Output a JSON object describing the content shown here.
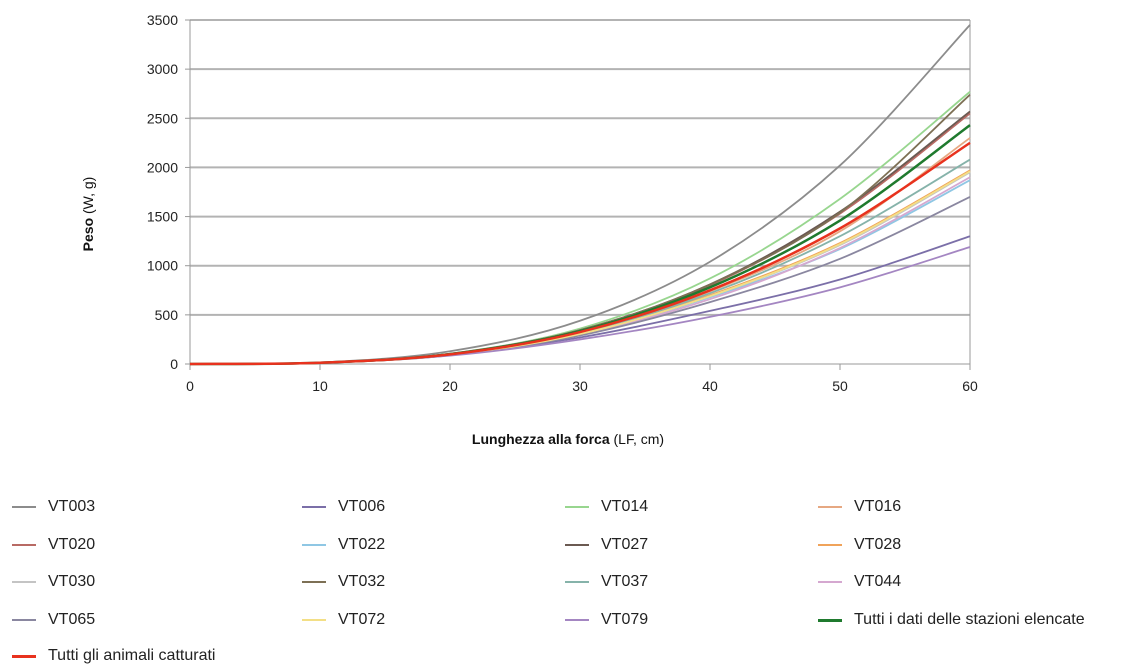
{
  "chart_data": {
    "type": "line",
    "title": "",
    "xlabel_bold": "Lunghezza alla forca",
    "xlabel_rest": " (LF, cm)",
    "ylabel_bold": "Peso",
    "ylabel_rest": " (W, g)",
    "xlim": [
      0,
      60
    ],
    "ylim": [
      0,
      3500
    ],
    "xticks": [
      0,
      10,
      20,
      30,
      40,
      50,
      60
    ],
    "yticks": [
      0,
      500,
      1000,
      1500,
      2000,
      2500,
      3000,
      3500
    ],
    "grid": "horizontal",
    "legend_position": "bottom",
    "x": [
      0,
      10,
      20,
      30,
      40,
      50,
      60
    ],
    "series": [
      {
        "name": "VT003",
        "color": "#8c8c8c",
        "values": [
          0,
          16,
          130,
          440,
          1040,
          2020,
          3450
        ]
      },
      {
        "name": "VT006",
        "color": "#7b6fa8",
        "values": [
          0,
          14,
          95,
          270,
          540,
          860,
          1300
        ]
      },
      {
        "name": "VT014",
        "color": "#98d68f",
        "values": [
          0,
          13,
          105,
          360,
          870,
          1680,
          2770
        ]
      },
      {
        "name": "VT016",
        "color": "#e6a882",
        "values": [
          0,
          13,
          98,
          320,
          740,
          1350,
          2300
        ]
      },
      {
        "name": "VT020",
        "color": "#b86a64",
        "values": [
          0,
          13,
          100,
          340,
          800,
          1530,
          2550
        ]
      },
      {
        "name": "VT022",
        "color": "#8fc7e4",
        "values": [
          0,
          12,
          90,
          300,
          680,
          1170,
          1870
        ]
      },
      {
        "name": "VT027",
        "color": "#6b5a52",
        "values": [
          0,
          13,
          104,
          345,
          810,
          1550,
          2570
        ]
      },
      {
        "name": "VT028",
        "color": "#f0a35a",
        "values": [
          0,
          13,
          95,
          310,
          700,
          1230,
          1970
        ]
      },
      {
        "name": "VT030",
        "color": "#c4c4c4",
        "values": [
          0,
          12,
          92,
          305,
          690,
          1210,
          1950
        ]
      },
      {
        "name": "VT032",
        "color": "#7d7055",
        "values": [
          0,
          13,
          102,
          345,
          810,
          1540,
          2740
        ]
      },
      {
        "name": "VT037",
        "color": "#86b3aa",
        "values": [
          0,
          13,
          98,
          320,
          720,
          1300,
          2080
        ]
      },
      {
        "name": "VT044",
        "color": "#d5a8d0",
        "values": [
          0,
          12,
          90,
          300,
          660,
          1180,
          1900
        ]
      },
      {
        "name": "VT065",
        "color": "#8a87a0",
        "values": [
          0,
          12,
          88,
          290,
          630,
          1070,
          1700
        ]
      },
      {
        "name": "VT072",
        "color": "#f3df86",
        "values": [
          0,
          12,
          92,
          305,
          690,
          1220,
          1960
        ]
      },
      {
        "name": "VT079",
        "color": "#a486c2",
        "values": [
          0,
          12,
          85,
          250,
          480,
          780,
          1190
        ]
      },
      {
        "name": "Tutti i dati delle stazioni elencate",
        "color": "#1f7a2e",
        "values": [
          0,
          13,
          100,
          335,
          780,
          1460,
          2430
        ]
      },
      {
        "name": "Tutti gli animali catturati",
        "color": "#e8321e",
        "values": [
          0,
          13,
          98,
          325,
          750,
          1380,
          2250
        ]
      }
    ]
  }
}
